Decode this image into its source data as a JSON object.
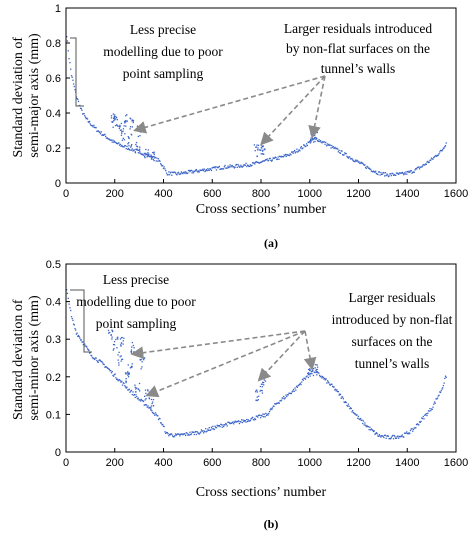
{
  "chart_data": [
    {
      "type": "scatter",
      "panel_label": "(a)",
      "xlabel": "Cross sections’ number",
      "ylabel": [
        "Standard deviation of",
        "semi-major axis (mm)"
      ],
      "xlim": [
        0,
        1600
      ],
      "ylim": [
        0,
        1
      ],
      "xticks": [
        "0",
        "200",
        "400",
        "600",
        "800",
        "1000",
        "1200",
        "1400",
        "1600"
      ],
      "yticks": [
        "0",
        "0.2",
        "0.4",
        "0.6",
        "0.8",
        "1"
      ],
      "series_color": "#3a63c8",
      "series": [
        {
          "curve": [
            [
              0,
              0.85
            ],
            [
              10,
              0.72
            ],
            [
              20,
              0.62
            ],
            [
              40,
              0.5
            ],
            [
              60,
              0.42
            ],
            [
              80,
              0.37
            ],
            [
              100,
              0.34
            ],
            [
              130,
              0.3
            ],
            [
              160,
              0.27
            ],
            [
              190,
              0.24
            ],
            [
              220,
              0.22
            ],
            [
              260,
              0.2
            ],
            [
              300,
              0.18
            ],
            [
              340,
              0.16
            ],
            [
              380,
              0.13
            ],
            [
              400,
              0.09
            ],
            [
              410,
              0.06
            ],
            [
              450,
              0.055
            ],
            [
              500,
              0.065
            ],
            [
              550,
              0.075
            ],
            [
              600,
              0.085
            ],
            [
              650,
              0.095
            ],
            [
              700,
              0.1
            ],
            [
              760,
              0.11
            ],
            [
              820,
              0.13
            ],
            [
              880,
              0.15
            ],
            [
              920,
              0.17
            ],
            [
              960,
              0.2
            ],
            [
              1000,
              0.24
            ],
            [
              1020,
              0.26
            ],
            [
              1060,
              0.23
            ],
            [
              1100,
              0.2
            ],
            [
              1150,
              0.16
            ],
            [
              1200,
              0.12
            ],
            [
              1250,
              0.08
            ],
            [
              1280,
              0.06
            ],
            [
              1320,
              0.05
            ],
            [
              1380,
              0.055
            ],
            [
              1420,
              0.07
            ],
            [
              1460,
              0.1
            ],
            [
              1500,
              0.14
            ],
            [
              1540,
              0.19
            ],
            [
              1560,
              0.24
            ]
          ],
          "outlier_clusters": [
            [
              190,
              0.38
            ],
            [
              200,
              0.35
            ],
            [
              215,
              0.32
            ],
            [
              230,
              0.28
            ],
            [
              240,
              0.36
            ],
            [
              260,
              0.25
            ],
            [
              270,
              0.34
            ],
            [
              290,
              0.2
            ],
            [
              300,
              0.3
            ],
            [
              330,
              0.18
            ],
            [
              350,
              0.15
            ],
            [
              780,
              0.19
            ],
            [
              800,
              0.2
            ],
            [
              810,
              0.22
            ],
            [
              1010,
              0.27
            ],
            [
              1020,
              0.28
            ]
          ]
        }
      ],
      "annotations": [
        {
          "lines": [
            "Less precise",
            "modelling due to poor",
            "point sampling"
          ]
        },
        {
          "lines": [
            "Larger residuals introduced",
            "by non-flat surfaces on the",
            "tunnel’s walls"
          ]
        }
      ],
      "arrow_targets": [
        [
          280,
          0.3
        ],
        [
          800,
          0.22
        ],
        [
          1010,
          0.26
        ]
      ]
    },
    {
      "type": "scatter",
      "panel_label": "(b)",
      "xlabel": "Cross sections’ number",
      "ylabel": [
        "Standard deviation of",
        "semi-minor axis (mm)"
      ],
      "xlim": [
        0,
        1600
      ],
      "ylim": [
        0,
        0.5
      ],
      "xticks": [
        "0",
        "200",
        "400",
        "600",
        "800",
        "1000",
        "1200",
        "1400",
        "1600"
      ],
      "yticks": [
        "0",
        "0.1",
        "0.2",
        "0.3",
        "0.4",
        "0.5"
      ],
      "series_color": "#3a63c8",
      "series": [
        {
          "curve": [
            [
              0,
              0.43
            ],
            [
              10,
              0.4
            ],
            [
              20,
              0.36
            ],
            [
              40,
              0.32
            ],
            [
              60,
              0.3
            ],
            [
              80,
              0.28
            ],
            [
              100,
              0.26
            ],
            [
              130,
              0.245
            ],
            [
              160,
              0.23
            ],
            [
              190,
              0.21
            ],
            [
              220,
              0.19
            ],
            [
              260,
              0.165
            ],
            [
              300,
              0.14
            ],
            [
              340,
              0.12
            ],
            [
              380,
              0.09
            ],
            [
              400,
              0.065
            ],
            [
              410,
              0.05
            ],
            [
              450,
              0.045
            ],
            [
              500,
              0.05
            ],
            [
              550,
              0.055
            ],
            [
              600,
              0.065
            ],
            [
              650,
              0.075
            ],
            [
              700,
              0.08
            ],
            [
              760,
              0.09
            ],
            [
              820,
              0.1
            ],
            [
              860,
              0.13
            ],
            [
              900,
              0.15
            ],
            [
              940,
              0.17
            ],
            [
              980,
              0.2
            ],
            [
              1010,
              0.22
            ],
            [
              1050,
              0.2
            ],
            [
              1100,
              0.17
            ],
            [
              1150,
              0.13
            ],
            [
              1200,
              0.09
            ],
            [
              1250,
              0.06
            ],
            [
              1280,
              0.045
            ],
            [
              1320,
              0.04
            ],
            [
              1380,
              0.045
            ],
            [
              1420,
              0.06
            ],
            [
              1460,
              0.09
            ],
            [
              1500,
              0.12
            ],
            [
              1540,
              0.17
            ],
            [
              1560,
              0.21
            ]
          ],
          "outlier_clusters": [
            [
              180,
              0.31
            ],
            [
              200,
              0.29
            ],
            [
              220,
              0.25
            ],
            [
              230,
              0.3
            ],
            [
              250,
              0.2
            ],
            [
              260,
              0.22
            ],
            [
              270,
              0.28
            ],
            [
              290,
              0.17
            ],
            [
              310,
              0.24
            ],
            [
              330,
              0.15
            ],
            [
              350,
              0.13
            ],
            [
              780,
              0.15
            ],
            [
              800,
              0.17
            ],
            [
              810,
              0.2
            ],
            [
              1000,
              0.21
            ],
            [
              1020,
              0.22
            ]
          ]
        }
      ],
      "annotations": [
        {
          "lines": [
            "Less precise",
            "modelling due to poor",
            "point sampling"
          ]
        },
        {
          "lines": [
            "Larger residuals",
            "introduced by non-flat",
            "surfaces on the",
            "tunnel’s walls"
          ]
        }
      ],
      "arrow_targets": [
        [
          270,
          0.26
        ],
        [
          330,
          0.15
        ],
        [
          790,
          0.19
        ],
        [
          1010,
          0.22
        ]
      ]
    }
  ]
}
